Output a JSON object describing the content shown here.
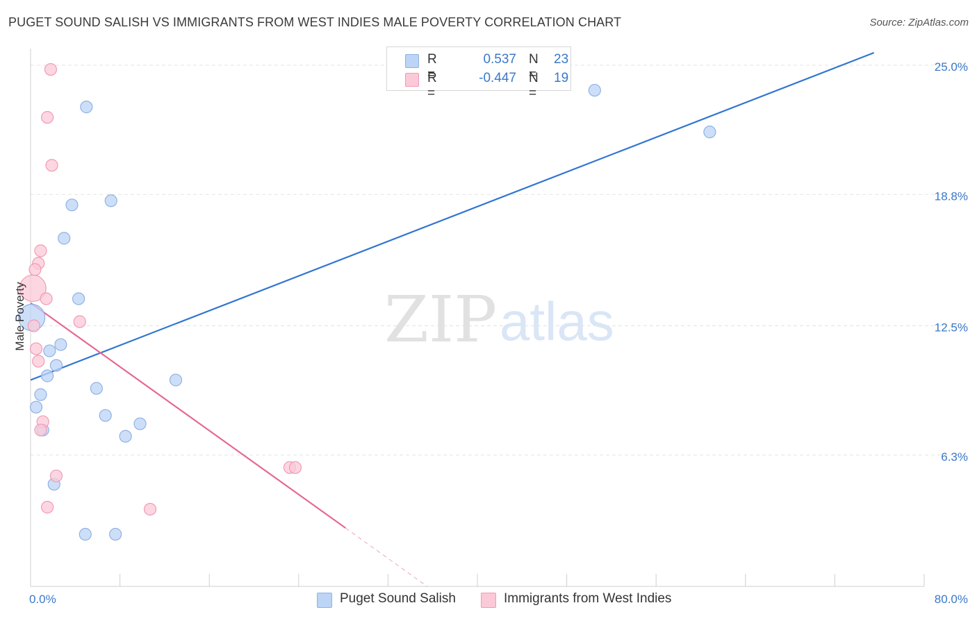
{
  "title": "PUGET SOUND SALISH VS IMMIGRANTS FROM WEST INDIES MALE POVERTY CORRELATION CHART",
  "source": "Source: ZipAtlas.com",
  "watermark": {
    "zip": "ZIP",
    "atlas": "atlas"
  },
  "legend_top": {
    "rows": [
      {
        "r_label": "R =",
        "r_value": "0.537",
        "n_label": "N =",
        "n_value": "23"
      },
      {
        "r_label": "R =",
        "r_value": "-0.447",
        "n_label": "N =",
        "n_value": "19"
      }
    ]
  },
  "legend_bottom": {
    "items": [
      {
        "label": "Puget Sound Salish"
      },
      {
        "label": "Immigrants from West Indies"
      }
    ]
  },
  "colors": {
    "blue_fill": "#bcd4f5",
    "blue_stroke": "#8fb1e3",
    "blue_line": "#3175d1",
    "pink_fill": "#fbc9d8",
    "pink_stroke": "#f09ab5",
    "pink_line": "#e46a94",
    "grid": "#e3e3e3",
    "axis_text": "#3a78c9"
  },
  "chart_data": {
    "type": "scatter",
    "title": "PUGET SOUND SALISH VS IMMIGRANTS FROM WEST INDIES MALE POVERTY CORRELATION CHART",
    "xlabel": "",
    "ylabel": "Male Poverty",
    "xlim": [
      0,
      80
    ],
    "ylim": [
      0,
      25.8
    ],
    "x_tick_labels": [
      {
        "value": 0,
        "label": "0.0%"
      },
      {
        "value": 80,
        "label": "80.0%"
      }
    ],
    "y_ticks": [
      {
        "value": 6.3,
        "label": "6.3%"
      },
      {
        "value": 12.5,
        "label": "12.5%"
      },
      {
        "value": 18.8,
        "label": "18.8%"
      },
      {
        "value": 25.0,
        "label": "25.0%"
      }
    ],
    "series": [
      {
        "name": "Puget Sound Salish",
        "r": 0.537,
        "n": 23,
        "trend": {
          "x0": 0,
          "y0": 9.9,
          "x1": 75.5,
          "y1": 25.6
        },
        "points": [
          {
            "x": 5.0,
            "y": 23.0,
            "size": 1
          },
          {
            "x": 50.5,
            "y": 23.8,
            "size": 1
          },
          {
            "x": 60.8,
            "y": 21.8,
            "size": 1
          },
          {
            "x": 3.7,
            "y": 18.3,
            "size": 1
          },
          {
            "x": 7.2,
            "y": 18.5,
            "size": 1
          },
          {
            "x": 3.0,
            "y": 16.7,
            "size": 1
          },
          {
            "x": 4.3,
            "y": 13.8,
            "size": 1
          },
          {
            "x": 0.1,
            "y": 12.9,
            "size": 2
          },
          {
            "x": 2.7,
            "y": 11.6,
            "size": 1
          },
          {
            "x": 1.7,
            "y": 11.3,
            "size": 1
          },
          {
            "x": 2.3,
            "y": 10.6,
            "size": 1
          },
          {
            "x": 1.5,
            "y": 10.1,
            "size": 1
          },
          {
            "x": 13.0,
            "y": 9.9,
            "size": 1
          },
          {
            "x": 5.9,
            "y": 9.5,
            "size": 1
          },
          {
            "x": 0.9,
            "y": 9.2,
            "size": 1
          },
          {
            "x": 0.5,
            "y": 8.6,
            "size": 1
          },
          {
            "x": 6.7,
            "y": 8.2,
            "size": 1
          },
          {
            "x": 9.8,
            "y": 7.8,
            "size": 1
          },
          {
            "x": 1.1,
            "y": 7.5,
            "size": 1
          },
          {
            "x": 8.5,
            "y": 7.2,
            "size": 1
          },
          {
            "x": 2.1,
            "y": 4.9,
            "size": 1
          },
          {
            "x": 4.9,
            "y": 2.5,
            "size": 1
          },
          {
            "x": 7.6,
            "y": 2.5,
            "size": 1
          }
        ]
      },
      {
        "name": "Immigrants from West Indies",
        "r": -0.447,
        "n": 19,
        "trend": {
          "x0": 0,
          "y0": 13.6,
          "x1": 28.2,
          "y1": 2.8,
          "dash_x1": 35.5,
          "dash_y1": 0.0
        },
        "points": [
          {
            "x": 1.8,
            "y": 24.8,
            "size": 1
          },
          {
            "x": 1.5,
            "y": 22.5,
            "size": 1
          },
          {
            "x": 1.9,
            "y": 20.2,
            "size": 1
          },
          {
            "x": 0.9,
            "y": 16.1,
            "size": 1
          },
          {
            "x": 0.7,
            "y": 15.5,
            "size": 1
          },
          {
            "x": 0.4,
            "y": 15.2,
            "size": 1
          },
          {
            "x": 0.2,
            "y": 14.3,
            "size": 2
          },
          {
            "x": 1.4,
            "y": 13.8,
            "size": 1
          },
          {
            "x": 4.4,
            "y": 12.7,
            "size": 1
          },
          {
            "x": 0.3,
            "y": 12.5,
            "size": 1
          },
          {
            "x": 0.5,
            "y": 11.4,
            "size": 1
          },
          {
            "x": 0.7,
            "y": 10.8,
            "size": 1
          },
          {
            "x": 1.1,
            "y": 7.9,
            "size": 1
          },
          {
            "x": 0.9,
            "y": 7.5,
            "size": 1
          },
          {
            "x": 23.2,
            "y": 5.7,
            "size": 1
          },
          {
            "x": 23.7,
            "y": 5.7,
            "size": 1
          },
          {
            "x": 2.3,
            "y": 5.3,
            "size": 1
          },
          {
            "x": 1.5,
            "y": 3.8,
            "size": 1
          },
          {
            "x": 10.7,
            "y": 3.7,
            "size": 1
          }
        ]
      }
    ]
  }
}
